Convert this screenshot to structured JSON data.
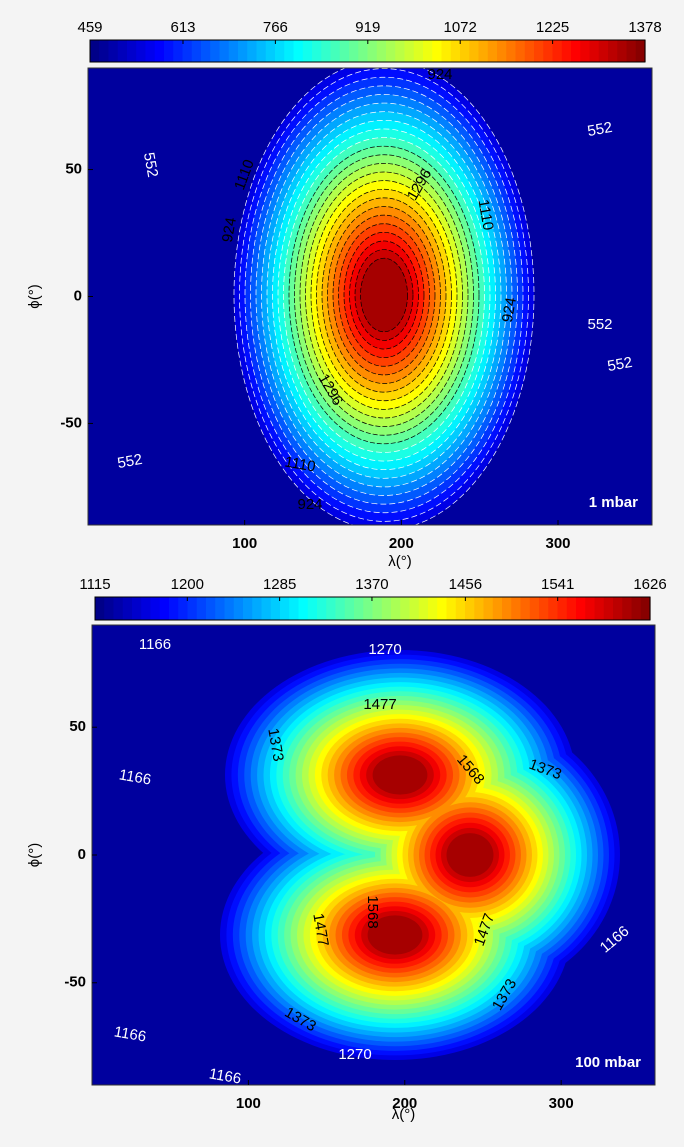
{
  "chart_data": [
    {
      "type": "contour",
      "clim": [
        459,
        1378
      ],
      "cticks": [
        459,
        613,
        766,
        919,
        1072,
        1225,
        1378
      ],
      "xlim": [
        0,
        360
      ],
      "ylim": [
        -90,
        90
      ],
      "xticks": [
        100,
        200,
        300
      ],
      "yticks": [
        -50,
        0,
        50
      ],
      "xlabel": "λ(°)",
      "ylabel": "ϕ(°)",
      "panel_label": "1 mbar",
      "contour_labels": [
        924,
        552,
        1110,
        1296,
        1110,
        552,
        924,
        924,
        552,
        552,
        1296,
        1110,
        552,
        924
      ]
    },
    {
      "type": "contour",
      "clim": [
        1115,
        1626
      ],
      "cticks": [
        1115,
        1200,
        1285,
        1370,
        1456,
        1541,
        1626
      ],
      "xlim": [
        0,
        360
      ],
      "ylim": [
        -90,
        90
      ],
      "xticks": [
        100,
        200,
        300
      ],
      "yticks": [
        -50,
        0,
        50
      ],
      "xlabel": "λ(°)",
      "ylabel": "ϕ(°)",
      "panel_label": "100 mbar",
      "contour_labels": [
        1166,
        1270,
        1477,
        1373,
        1568,
        1373,
        1166,
        1477,
        1568,
        1477,
        1373,
        1373,
        1166,
        1166,
        1270,
        1166
      ]
    }
  ]
}
